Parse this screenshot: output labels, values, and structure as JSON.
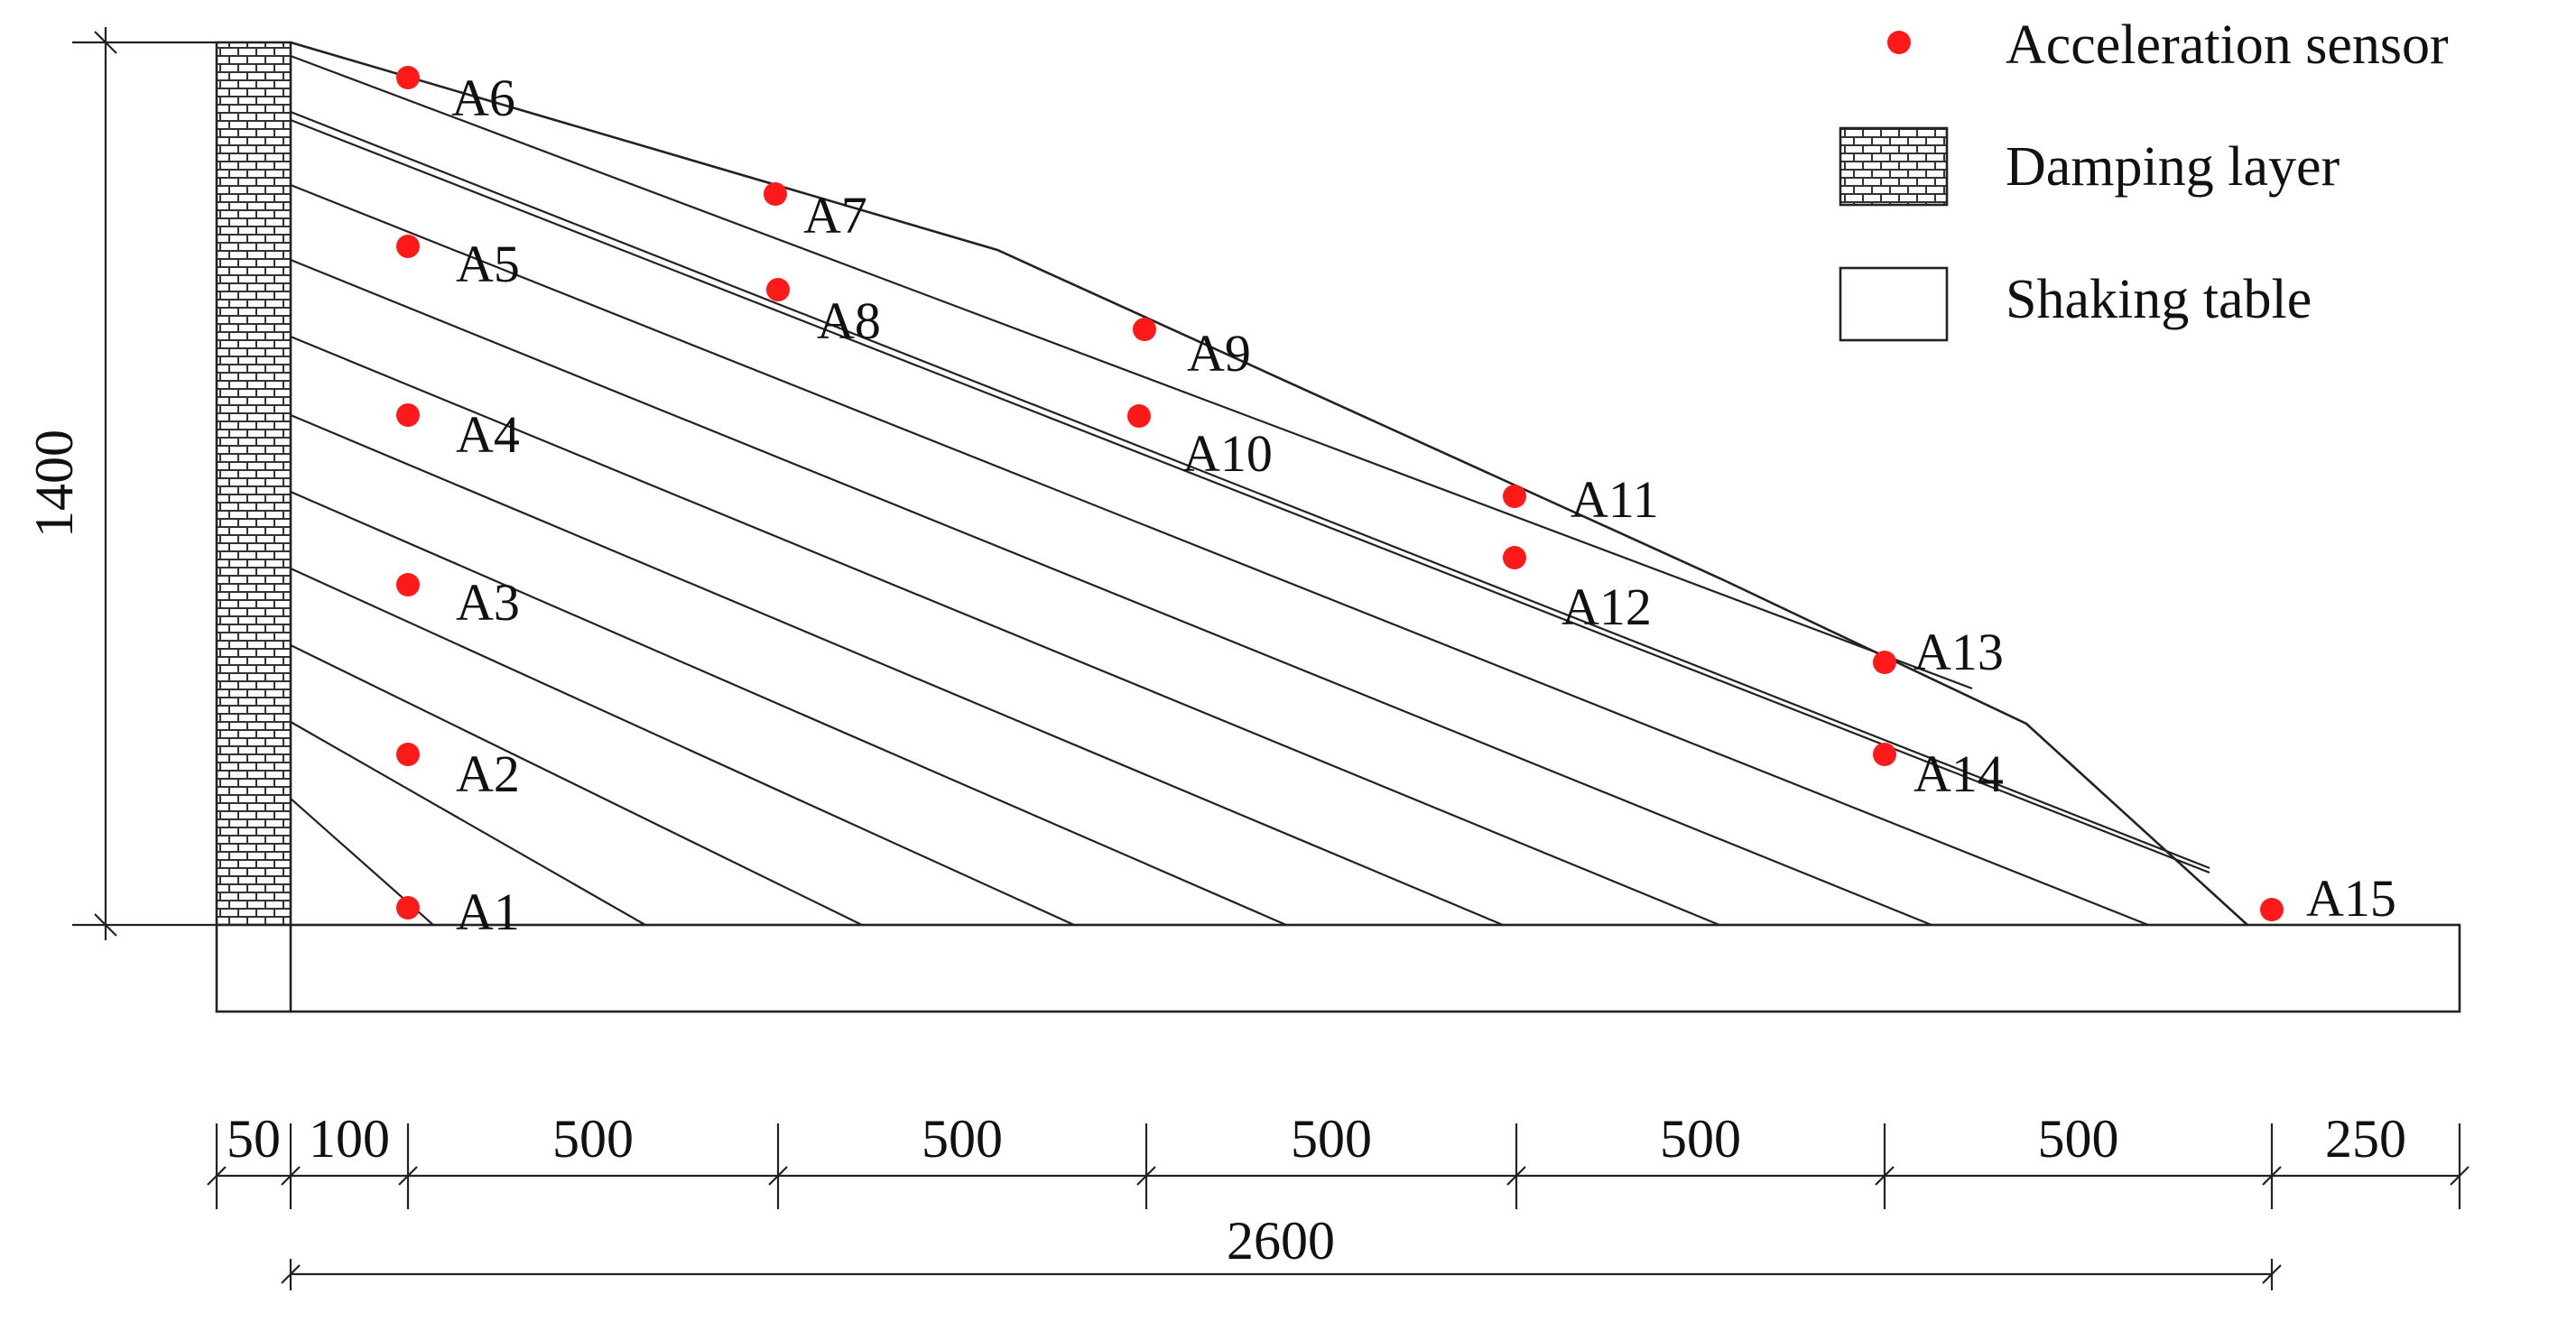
{
  "sensors": [
    {
      "id": "A1",
      "label": "A1"
    },
    {
      "id": "A2",
      "label": "A2"
    },
    {
      "id": "A3",
      "label": "A3"
    },
    {
      "id": "A4",
      "label": "A4"
    },
    {
      "id": "A5",
      "label": "A5"
    },
    {
      "id": "A6",
      "label": "A6"
    },
    {
      "id": "A7",
      "label": "A7"
    },
    {
      "id": "A8",
      "label": "A8"
    },
    {
      "id": "A9",
      "label": "A9"
    },
    {
      "id": "A10",
      "label": "A10"
    },
    {
      "id": "A11",
      "label": "A11"
    },
    {
      "id": "A12",
      "label": "A12"
    },
    {
      "id": "A13",
      "label": "A13"
    },
    {
      "id": "A14",
      "label": "A14"
    },
    {
      "id": "A15",
      "label": "A15"
    }
  ],
  "legend": {
    "sensor": "Acceleration sensor",
    "damping": "Damping layer",
    "table": "Shaking table"
  },
  "dimensions": {
    "height": "1400",
    "segments": [
      "50",
      "100",
      "500",
      "500",
      "500",
      "500",
      "500",
      "250"
    ],
    "total": "2600"
  },
  "colors": {
    "sensor": "#ff1a1a",
    "line": "#222222"
  }
}
